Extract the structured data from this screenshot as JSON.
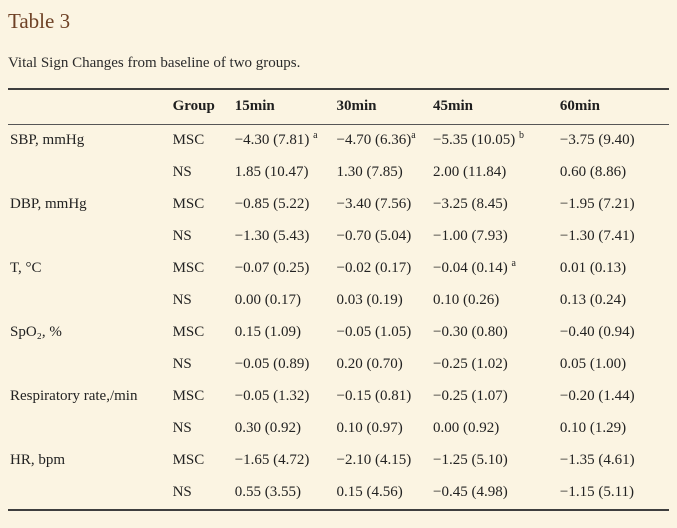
{
  "page": {
    "title": "Table 3",
    "caption": "Vital Sign Changes from baseline of two groups."
  },
  "table": {
    "columns": [
      "",
      "Group",
      "15min",
      "30min",
      "45min",
      "60min"
    ],
    "rows": [
      {
        "label": "SBP, mmHg",
        "group": "MSC",
        "cells": [
          {
            "v": "−4.30 (7.81)",
            "sup": "a",
            "sp": true
          },
          {
            "v": "−4.70 (6.36)",
            "sup": "a",
            "sp": false
          },
          {
            "v": "−5.35 (10.05)",
            "sup": "b",
            "sp": true
          },
          {
            "v": "−3.75 (9.40)"
          }
        ]
      },
      {
        "label": "",
        "group": "NS",
        "cells": [
          {
            "v": "1.85 (10.47)"
          },
          {
            "v": "1.30 (7.85)"
          },
          {
            "v": "2.00 (11.84)"
          },
          {
            "v": "0.60 (8.86)"
          }
        ]
      },
      {
        "label": "DBP, mmHg",
        "group": "MSC",
        "cells": [
          {
            "v": "−0.85 (5.22)"
          },
          {
            "v": "−3.40 (7.56)"
          },
          {
            "v": "−3.25 (8.45)"
          },
          {
            "v": "−1.95 (7.21)"
          }
        ]
      },
      {
        "label": "",
        "group": "NS",
        "cells": [
          {
            "v": "−1.30 (5.43)"
          },
          {
            "v": "−0.70 (5.04)"
          },
          {
            "v": "−1.00 (7.93)"
          },
          {
            "v": "−1.30 (7.41)"
          }
        ]
      },
      {
        "label": "T, °C",
        "group": "MSC",
        "cells": [
          {
            "v": "−0.07 (0.25)"
          },
          {
            "v": "−0.02 (0.17)"
          },
          {
            "v": "−0.04 (0.14)",
            "sup": "a",
            "sp": true
          },
          {
            "v": "0.01 (0.13)"
          }
        ]
      },
      {
        "label": "",
        "group": "NS",
        "cells": [
          {
            "v": "0.00 (0.17)"
          },
          {
            "v": "0.03 (0.19)"
          },
          {
            "v": "0.10 (0.26)"
          },
          {
            "v": "0.13 (0.24)"
          }
        ]
      },
      {
        "label": "SpO₂, %",
        "group": "MSC",
        "cells": [
          {
            "v": "0.15 (1.09)"
          },
          {
            "v": "−0.05 (1.05)"
          },
          {
            "v": "−0.30 (0.80)"
          },
          {
            "v": "−0.40 (0.94)"
          }
        ]
      },
      {
        "label": "",
        "group": "NS",
        "cells": [
          {
            "v": "−0.05 (0.89)"
          },
          {
            "v": "0.20 (0.70)"
          },
          {
            "v": "−0.25 (1.02)"
          },
          {
            "v": "0.05 (1.00)"
          }
        ]
      },
      {
        "label": "Respiratory rate,/min",
        "group": "MSC",
        "cells": [
          {
            "v": "−0.05 (1.32)"
          },
          {
            "v": "−0.15 (0.81)"
          },
          {
            "v": "−0.25 (1.07)"
          },
          {
            "v": "−0.20 (1.44)"
          }
        ]
      },
      {
        "label": "",
        "group": "NS",
        "cells": [
          {
            "v": "0.30 (0.92)"
          },
          {
            "v": "0.10 (0.97)"
          },
          {
            "v": "0.00 (0.92)"
          },
          {
            "v": "0.10 (1.29)"
          }
        ]
      },
      {
        "label": "HR, bpm",
        "group": "MSC",
        "cells": [
          {
            "v": "−1.65 (4.72)"
          },
          {
            "v": "−2.10 (4.15)"
          },
          {
            "v": "−1.25 (5.10)"
          },
          {
            "v": "−1.35 (4.61)"
          }
        ]
      },
      {
        "label": "",
        "group": "NS",
        "cells": [
          {
            "v": "0.55 (3.55)"
          },
          {
            "v": "0.15 (4.56)"
          },
          {
            "v": "−0.45 (4.98)"
          },
          {
            "v": "−1.15 (5.11)"
          }
        ]
      }
    ]
  },
  "colors": {
    "background": "#fbf4e2",
    "title": "#6e4125",
    "text": "#222222",
    "rule_heavy": "#3e3e3e",
    "rule_light": "#565656"
  }
}
